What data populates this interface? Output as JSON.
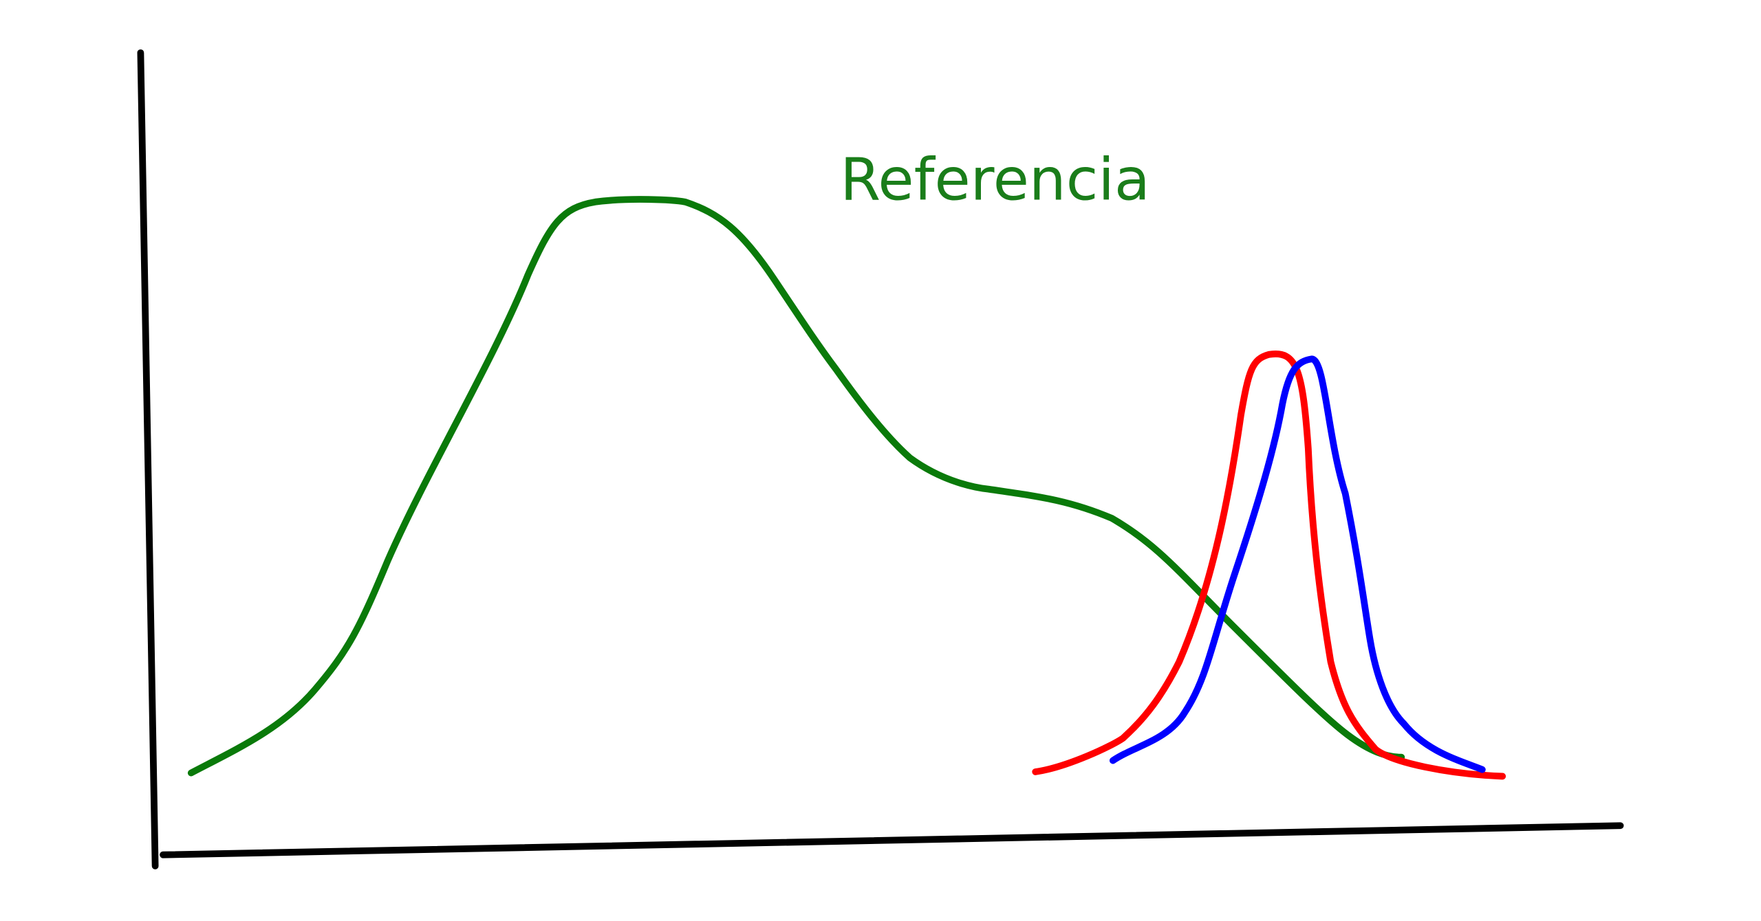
{
  "label": "Referencia"
}
